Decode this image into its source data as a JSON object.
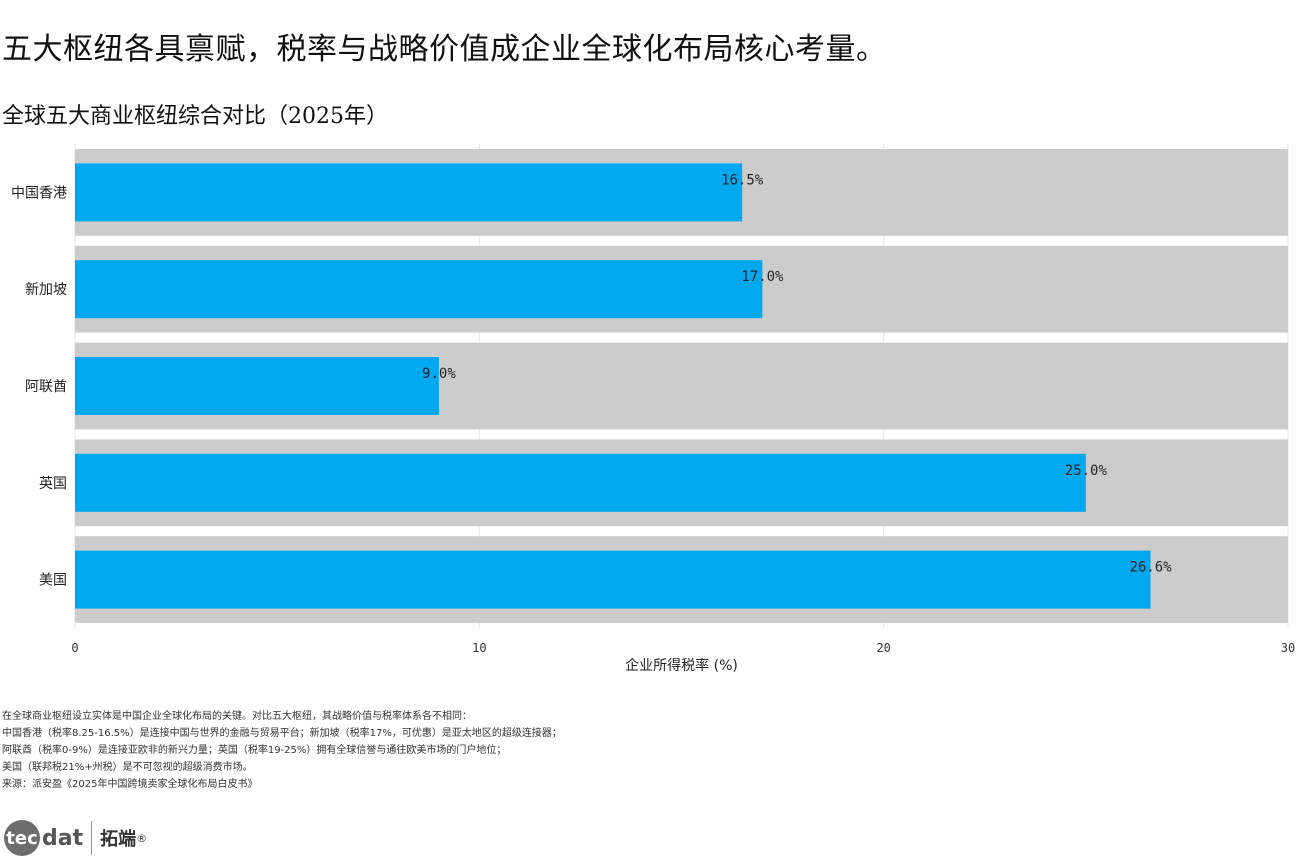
{
  "headline": "五大枢纽各具禀赋，税率与战略价值成企业全球化布局核心考量。",
  "notes": [
    "在全球商业枢纽设立实体是中国企业全球化布局的关键。对比五大枢纽，其战略价值与税率体系各不相同：",
    "中国香港（税率8.25-16.5%）是连接中国与世界的金融与贸易平台；新加坡（税率17%，可优惠）是亚太地区的超级连接器；",
    "阿联酋（税率0-9%）是连接亚欧非的新兴力量；英国（税率19-25%）拥有全球信誉与通往欧美市场的门户地位；",
    "美国（联邦税21%+州税）是不可忽视的超级消费市场。",
    "来源：派安盈《2025年中国跨境卖家全球化布局白皮书》"
  ],
  "logo": {
    "mark": "tec",
    "suffix": "dat",
    "cn": "拓端",
    "reg": "®"
  },
  "chart_data": {
    "type": "bar",
    "orientation": "horizontal",
    "title": "全球五大商业枢纽综合对比（2025年）",
    "categories": [
      "中国香港",
      "新加坡",
      "阿联酋",
      "英国",
      "美国"
    ],
    "values": [
      16.5,
      17.0,
      9.0,
      25.0,
      26.6
    ],
    "value_labels": [
      "16.5%",
      "17.0%",
      "9.0%",
      "25.0%",
      "26.6%"
    ],
    "background_value": 30,
    "xlabel": "企业所得税率 (%)",
    "xlim": [
      0,
      30
    ],
    "xticks": [
      0,
      10,
      20,
      30
    ],
    "grid": true,
    "colors": {
      "bar": "#00a8f0",
      "background": "#cccccc",
      "grid": "#e6e6e6"
    }
  }
}
